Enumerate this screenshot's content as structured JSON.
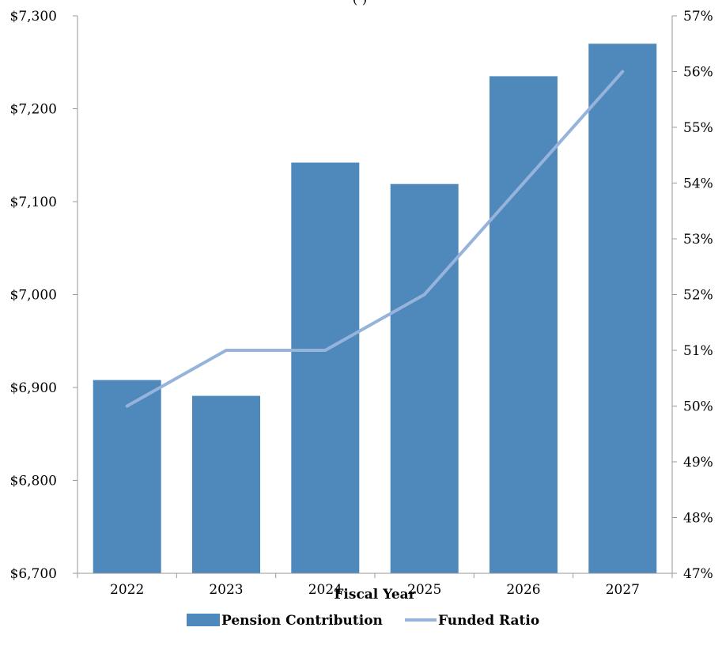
{
  "chart_data": {
    "type": "bar",
    "title_fragment": "(          )",
    "categories": [
      "2022",
      "2023",
      "2024",
      "2025",
      "2026",
      "2027"
    ],
    "xlabel": "Fiscal Year",
    "ylabel": "",
    "ylabel_right": "",
    "ylim": [
      6700,
      7300
    ],
    "ylim_right": [
      47,
      57
    ],
    "y_ticks": [
      "$6,700",
      "$6,800",
      "$6,900",
      "$7,000",
      "$7,100",
      "$7,200",
      "$7,300"
    ],
    "y_ticks_right": [
      "47%",
      "48%",
      "49%",
      "50%",
      "51%",
      "52%",
      "53%",
      "54%",
      "55%",
      "56%",
      "57%"
    ],
    "series": [
      {
        "name": "Pension Contribution",
        "type": "bar",
        "axis": "left",
        "color": "#4f88bb",
        "values": [
          6908,
          6891,
          7142,
          7119,
          7235,
          7270
        ]
      },
      {
        "name": "Funded Ratio",
        "type": "line",
        "axis": "right",
        "color": "#95b3db",
        "values": [
          50,
          51,
          51,
          52,
          54,
          56
        ]
      }
    ],
    "grid": false,
    "legend_position": "bottom"
  }
}
